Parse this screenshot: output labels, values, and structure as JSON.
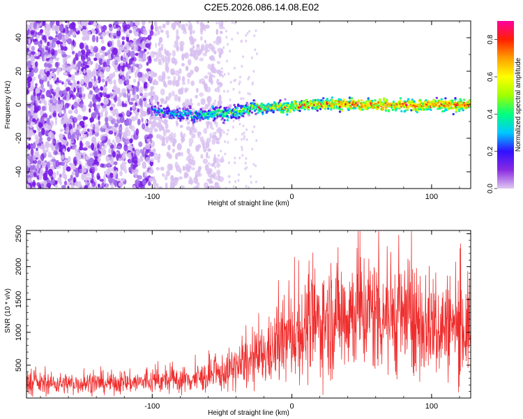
{
  "page_title": "C2E5.2026.086.14.08.E02",
  "chart_data": [
    {
      "type": "heatmap",
      "title": "C2E5.2026.086.14.08.E02",
      "xlabel": "Height of straight line (km)",
      "ylabel": "Frequency (Hz)",
      "xlim": [
        -190,
        128
      ],
      "ylim": [
        -50,
        50
      ],
      "xticks": [
        -100,
        0,
        100
      ],
      "yticks": [
        -40,
        -20,
        0,
        20,
        40
      ],
      "colorbar": {
        "label": "Normalized spectral amplitude",
        "range": [
          0,
          0.9
        ],
        "ticks": [
          "0.0",
          "0.2",
          "0.4",
          "0.6",
          "0.8"
        ],
        "colormap": [
          "#e0c8f0",
          "#8a2be2",
          "#3010ff",
          "#00c8ff",
          "#00ff80",
          "#a0ff00",
          "#ffff00",
          "#ffa000",
          "#ff2000",
          "#ff00a0"
        ]
      },
      "features": {
        "noise_region_km": [
          -190,
          -60
        ],
        "signal_onset_km": -100,
        "signal_band_hz": [
          -5,
          5
        ],
        "signal_center_hz": 0
      }
    },
    {
      "type": "line",
      "xlabel": "Height of straight line (km)",
      "ylabel": "SNR (10 * v/v)",
      "xlim": [
        -190,
        128
      ],
      "ylim": [
        0,
        2550
      ],
      "xticks": [
        -100,
        0,
        100
      ],
      "yticks": [
        500,
        1000,
        1500,
        2000,
        2500
      ],
      "series": [
        {
          "name": "SNR",
          "color": "#ee2222",
          "x": [
            -190,
            -170,
            -150,
            -130,
            -110,
            -90,
            -70,
            -55,
            -45,
            -35,
            -25,
            -15,
            -5,
            5,
            15,
            25,
            35,
            45,
            55,
            65,
            75,
            85,
            95,
            105,
            115,
            128
          ],
          "y": [
            220,
            220,
            225,
            230,
            240,
            260,
            290,
            340,
            420,
            500,
            580,
            700,
            880,
            1000,
            1100,
            1200,
            1280,
            1330,
            1320,
            1300,
            1250,
            1200,
            1150,
            1100,
            1080,
            1050
          ]
        }
      ]
    }
  ]
}
